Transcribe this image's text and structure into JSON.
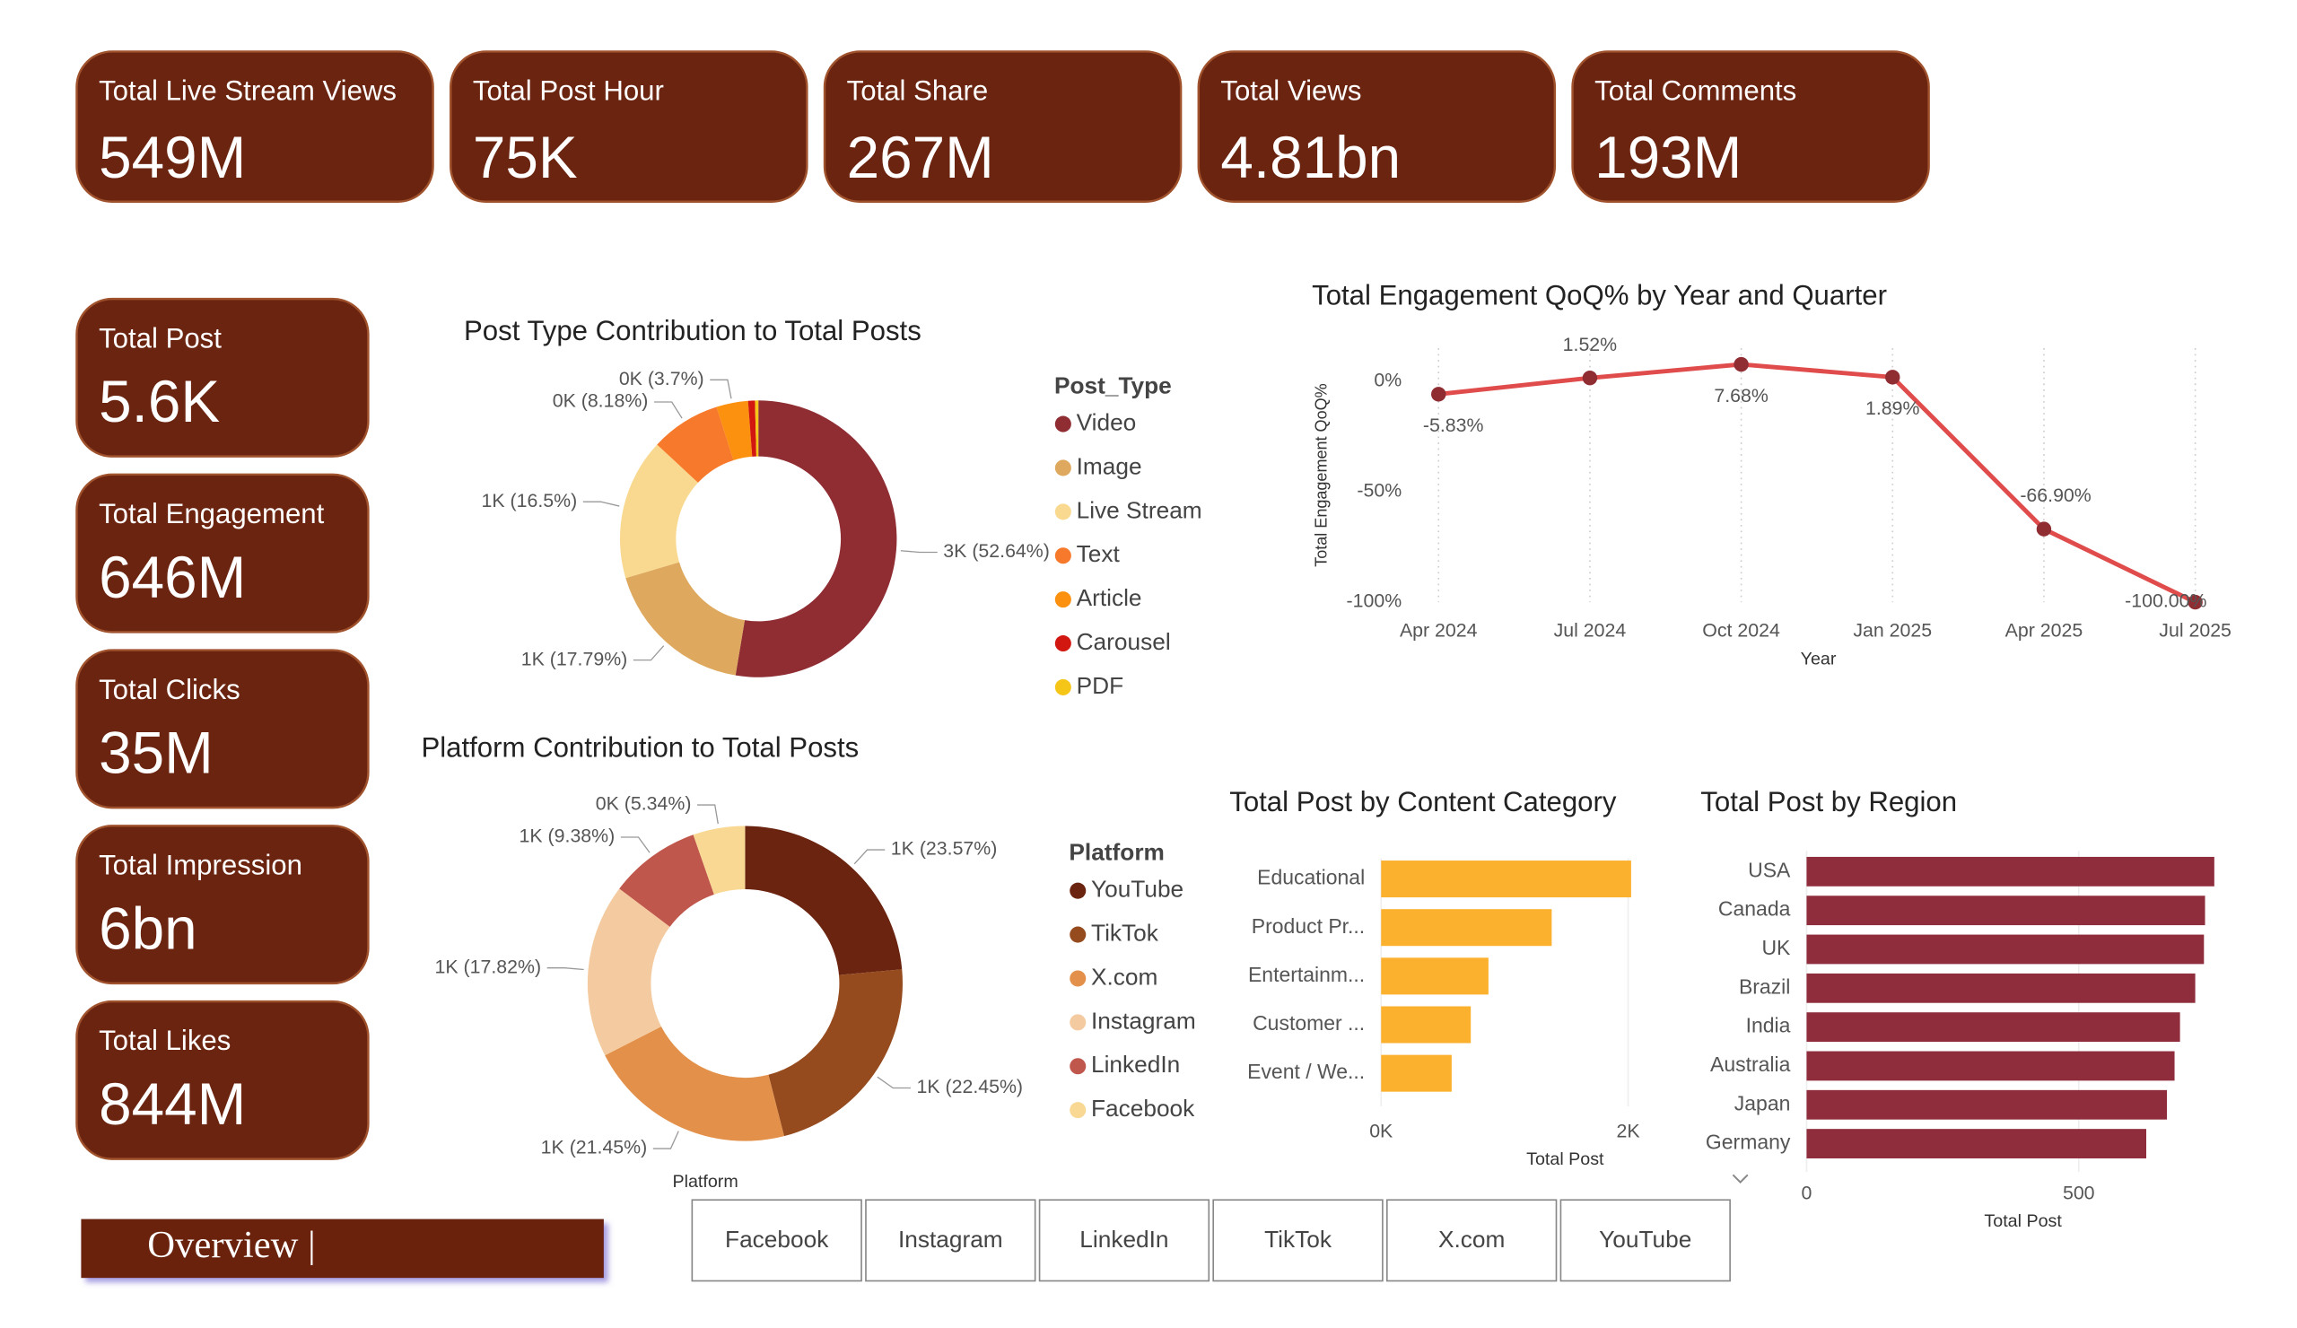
{
  "kpi_top": [
    {
      "label": "Total Live Stream Views",
      "value": "549M"
    },
    {
      "label": "Total Post Hour",
      "value": "75K"
    },
    {
      "label": "Total Share",
      "value": "267M"
    },
    {
      "label": "Total Views",
      "value": "4.81bn"
    },
    {
      "label": "Total Comments",
      "value": "193M"
    }
  ],
  "kpi_side": [
    {
      "label": "Total Post",
      "value": "5.6K"
    },
    {
      "label": "Total Engagement",
      "value": "646M"
    },
    {
      "label": "Total Clicks",
      "value": "35M"
    },
    {
      "label": "Total Impression",
      "value": "6bn"
    },
    {
      "label": "Total Likes",
      "value": "844M"
    }
  ],
  "chart_data": [
    {
      "type": "donut",
      "title": "Post Type Contribution to Total Posts",
      "legend_title": "Post_Type",
      "categories": [
        "Video",
        "Image",
        "Live Stream",
        "Text",
        "Article",
        "Carousel",
        "PDF"
      ],
      "values": [
        52.64,
        17.79,
        16.5,
        8.18,
        3.7,
        0.8,
        0.39
      ],
      "value_labels": [
        "3K (52.64%)",
        "1K (17.79%)",
        "1K (16.5%)",
        "0K (8.18%)",
        "0K (3.7%)",
        null,
        null
      ],
      "colors": [
        "#8f2d33",
        "#dea95e",
        "#f9d98f",
        "#f7792b",
        "#fc900f",
        "#d1170f",
        "#f5c518"
      ]
    },
    {
      "type": "donut",
      "title": "Platform Contribution to Total Posts",
      "legend_title": "Platform",
      "x_label": "Platform",
      "categories": [
        "YouTube",
        "TikTok",
        "X.com",
        "Instagram",
        "LinkedIn",
        "Facebook"
      ],
      "values": [
        23.57,
        22.45,
        21.45,
        17.82,
        9.38,
        5.34
      ],
      "value_labels": [
        "1K (23.57%)",
        "1K (22.45%)",
        "1K (21.45%)",
        "1K (17.82%)",
        "1K (9.38%)",
        "0K (5.34%)"
      ],
      "colors": [
        "#6b2410",
        "#954b1e",
        "#e3914a",
        "#f4cba0",
        "#c0574c",
        "#f8d893"
      ]
    },
    {
      "type": "line",
      "title": "Total Engagement QoQ% by Year and Quarter",
      "x_label": "Year",
      "y_label": "Total Engagement QoQ%",
      "categories": [
        "Apr 2024",
        "Jul 2024",
        "Oct 2024",
        "Jan 2025",
        "Apr 2025",
        "Jul 2025"
      ],
      "values": [
        -5.83,
        1.52,
        7.68,
        1.89,
        -66.9,
        -100.0
      ],
      "value_labels": [
        "-5.83%",
        "1.52%",
        "7.68%",
        "1.89%",
        "-66.90%",
        "-100.00%"
      ],
      "color": "#e04b4b",
      "marker_color": "#8f2d33",
      "ylim": [
        -100,
        15
      ],
      "yticks": [
        {
          "value": 0,
          "label": "0%"
        },
        {
          "value": -50,
          "label": "-50%"
        },
        {
          "value": -100,
          "label": "-100%"
        }
      ]
    },
    {
      "type": "hbar",
      "title": "Total Post by Content Category",
      "x_label": "Total Post",
      "categories": [
        "Educational",
        "Product Pr...",
        "Entertainm...",
        "Customer ...",
        "Event / We..."
      ],
      "values": [
        2024,
        1381,
        869,
        726,
        571
      ],
      "color": "#fbb02e",
      "xlim": [
        0,
        2050
      ],
      "xticks": [
        {
          "value": 0,
          "label": "0K"
        },
        {
          "value": 2000,
          "label": "2K"
        }
      ],
      "grid": true
    },
    {
      "type": "hbar",
      "title": "Total Post by Region",
      "x_label": "Total Post",
      "categories": [
        "USA",
        "Canada",
        "UK",
        "Brazil",
        "India",
        "Australia",
        "Japan",
        "Germany"
      ],
      "values": [
        749,
        732,
        730,
        714,
        686,
        676,
        662,
        624
      ],
      "color": "#8f2d3d",
      "xlim": [
        0,
        760
      ],
      "xticks": [
        0,
        500
      ],
      "grid": true
    }
  ],
  "slicer": {
    "buttons": [
      "Facebook",
      "Instagram",
      "LinkedIn",
      "TikTok",
      "X.com",
      "YouTube"
    ]
  },
  "nav": {
    "button": "Overview |"
  }
}
